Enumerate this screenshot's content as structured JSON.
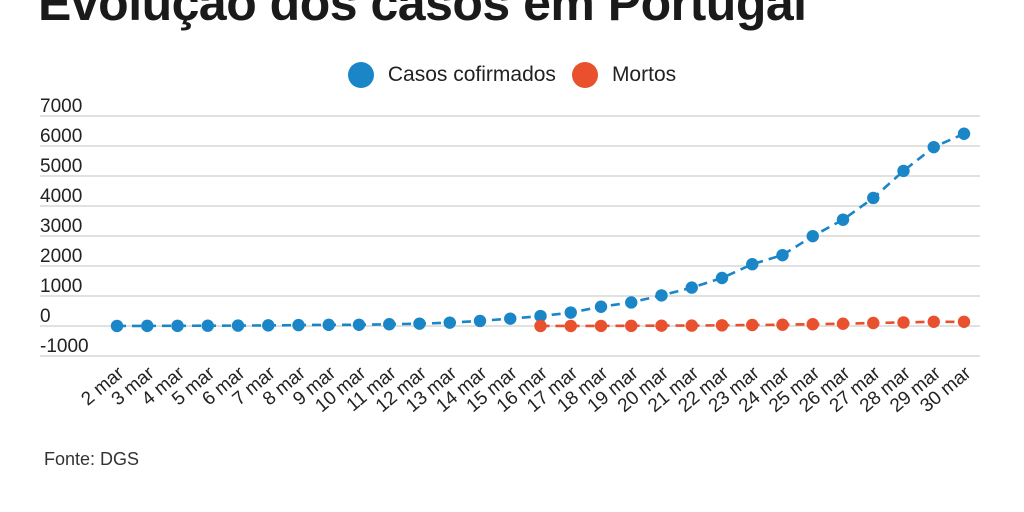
{
  "title": "Evolução dos casos em Portugal",
  "source": "Fonte: DGS",
  "colors": {
    "confirmed": "#1a86c8",
    "deaths": "#e8502e",
    "grid": "#cfcfcf",
    "text": "#222222"
  },
  "chart_data": {
    "type": "line",
    "title": "Evolução dos casos em Portugal",
    "xlabel": "",
    "ylabel": "",
    "ylim": [
      -1000,
      7000
    ],
    "yticks": [
      7000,
      6000,
      5000,
      4000,
      3000,
      2000,
      1000,
      0,
      -1000
    ],
    "grid": true,
    "legend_position": "top-center",
    "categories": [
      "2 mar",
      "3 mar",
      "4 mar",
      "5 mar",
      "6 mar",
      "7 mar",
      "8 mar",
      "9 mar",
      "10 mar",
      "11 mar",
      "12 mar",
      "13 mar",
      "14 mar",
      "15 mar",
      "16 mar",
      "17 mar",
      "18 mar",
      "19 mar",
      "20 mar",
      "21 mar",
      "22 mar",
      "23 mar",
      "24 mar",
      "25 mar",
      "26 mar",
      "27 mar",
      "28 mar",
      "29 mar",
      "30 mar"
    ],
    "series": [
      {
        "name": "Casos cofirmados",
        "color": "#1a86c8",
        "values": [
          2,
          4,
          6,
          9,
          13,
          21,
          30,
          39,
          41,
          59,
          78,
          112,
          169,
          245,
          331,
          448,
          642,
          785,
          1020,
          1280,
          1600,
          2060,
          2362,
          2995,
          3544,
          4268,
          5170,
          5962,
          6408
        ]
      },
      {
        "name": "Mortos",
        "color": "#e8502e",
        "values": [
          null,
          null,
          null,
          null,
          null,
          null,
          null,
          null,
          null,
          null,
          null,
          null,
          null,
          null,
          1,
          2,
          3,
          6,
          12,
          14,
          23,
          33,
          43,
          60,
          76,
          100,
          119,
          140,
          140
        ]
      }
    ]
  }
}
